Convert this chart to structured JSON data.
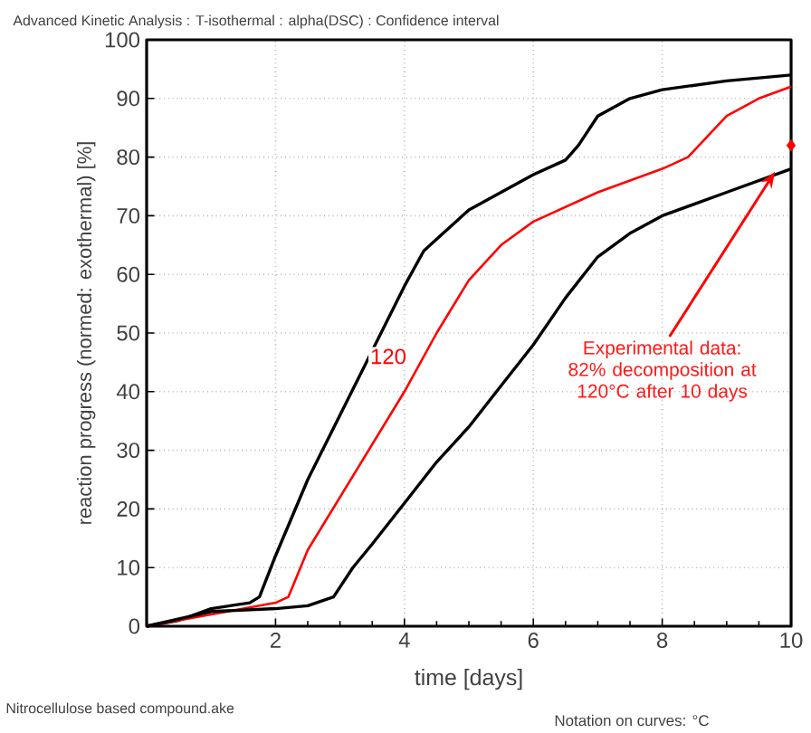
{
  "chart_data": {
    "type": "line",
    "title": "Advanced Kinetic Analysis : T-isothermal : alpha(DSC) : Confidence interval",
    "xlabel": "time [days]",
    "ylabel": "reaction progress (normed: exothermal) [%]",
    "xlim": [
      0,
      10
    ],
    "ylim": [
      0,
      100
    ],
    "xticks": [
      2,
      4,
      6,
      8,
      10
    ],
    "yticks": [
      0,
      10,
      20,
      30,
      40,
      50,
      60,
      70,
      80,
      90,
      100
    ],
    "grid": true,
    "marker": "none",
    "line_style": "solid",
    "series": [
      {
        "color": "#000000",
        "x": [
          0,
          0.5,
          1,
          1.6,
          1.75,
          2,
          2.5,
          3,
          3.5,
          4,
          4.3,
          4.6,
          5,
          5.5,
          6,
          6.5,
          6.7,
          7,
          7.5,
          8,
          9,
          10
        ],
        "values": [
          0,
          1,
          3,
          4,
          5,
          12,
          25,
          36,
          47,
          58,
          64,
          67,
          71,
          74,
          77,
          79.5,
          82,
          87,
          90,
          91.5,
          93,
          94
        ]
      },
      {
        "color": "#ff0000",
        "name": "120",
        "x": [
          0,
          1,
          2,
          2.2,
          2.5,
          3,
          3.5,
          4,
          4.5,
          5,
          5.5,
          6,
          7,
          8,
          8.4,
          9,
          9.5,
          10
        ],
        "values": [
          0,
          2,
          4,
          5,
          13,
          22,
          31,
          40,
          50,
          59,
          65,
          69,
          74,
          78,
          80,
          87,
          90,
          92
        ]
      },
      {
        "color": "#000000",
        "x": [
          0,
          1,
          2,
          2.5,
          2.9,
          3.2,
          3.5,
          4,
          4.5,
          5,
          5.5,
          6,
          6.5,
          7,
          7.5,
          8,
          9,
          10
        ],
        "values": [
          0,
          2.5,
          3,
          3.5,
          5,
          10,
          14,
          21,
          28,
          34,
          41,
          48,
          56,
          63,
          67,
          70,
          74,
          78
        ]
      },
      {
        "type": "scatter",
        "marker": "diamond",
        "color": "#ff0000",
        "x": [
          10
        ],
        "values": [
          82
        ]
      }
    ],
    "annotations": [
      {
        "text": "Experimental data: 82% decomposition at 120°C after 10 days",
        "x": 9.75,
        "y": 77.5
      },
      "Nitrocellulose based compound.ake",
      "Notation on curves: °C"
    ]
  }
}
